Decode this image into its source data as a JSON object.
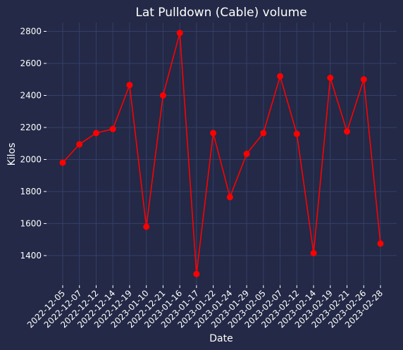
{
  "colors": {
    "background": "#232946",
    "grid": "#34406a",
    "text": "#ffffff",
    "series": "#ff0000"
  },
  "chart_data": {
    "type": "line",
    "title": "Lat Pulldown (Cable) volume",
    "xlabel": "Date",
    "ylabel": "Kilos",
    "grid": true,
    "ylim": [
      1215,
      2855
    ],
    "yticks": [
      1400,
      1600,
      1800,
      2000,
      2200,
      2400,
      2600,
      2800
    ],
    "categories": [
      "2022-12-05",
      "2022-12-07",
      "2022-12-12",
      "2022-12-14",
      "2022-12-19",
      "2023-01-10",
      "2022-12-21",
      "2023-01-16",
      "2023-01-17",
      "2023-01-22",
      "2023-01-24",
      "2023-01-29",
      "2023-02-05",
      "2023-02-07",
      "2023-02-12",
      "2023-02-14",
      "2023-02-19",
      "2023-02-21",
      "2023-02-26",
      "2023-02-28"
    ],
    "series": [
      {
        "values": [
          1980,
          2095,
          2165,
          2190,
          2465,
          1580,
          2400,
          2790,
          1285,
          2165,
          1765,
          2035,
          2165,
          2520,
          2160,
          1415,
          2510,
          2175,
          2500,
          1475
        ]
      }
    ]
  }
}
